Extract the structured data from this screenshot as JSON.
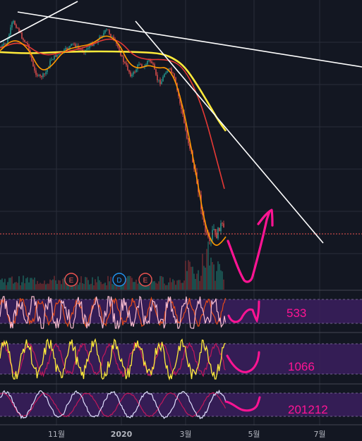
{
  "colors": {
    "background": "#131722",
    "grid": "#2a2e39",
    "up_candle": "#26a69a",
    "down_candle": "#ef5350",
    "ma_orange": "#ff9800",
    "ma_red": "#e53935",
    "ma_yellow": "#ffeb3b",
    "trendline": "#ffffff",
    "annotation": "#ff1493",
    "indicator_band": "#3b1f5e",
    "stoch_k": "#f8bbd0",
    "stoch_d": "#e64a19",
    "stoch2_k": "#ffeb3b",
    "stoch2_d": "#c2185b",
    "stoch3_k": "#e0e0ff",
    "stoch3_d": "#c2185b"
  },
  "chart_data": {
    "type": "candlestick",
    "x_axis": {
      "ticks": [
        {
          "label": "11월",
          "bold": false
        },
        {
          "label": "2020",
          "bold": true
        },
        {
          "label": "3월",
          "bold": false
        },
        {
          "label": "5월",
          "bold": false
        },
        {
          "label": "7월",
          "bold": false
        }
      ]
    },
    "grid": true,
    "price_scale": "hidden",
    "price_path": [
      [
        0,
        68
      ],
      [
        10,
        60
      ],
      [
        18,
        30
      ],
      [
        25,
        40
      ],
      [
        32,
        55
      ],
      [
        40,
        65
      ],
      [
        48,
        100
      ],
      [
        56,
        110
      ],
      [
        64,
        105
      ],
      [
        72,
        85
      ],
      [
        80,
        78
      ],
      [
        88,
        75
      ],
      [
        96,
        68
      ],
      [
        104,
        62
      ],
      [
        112,
        70
      ],
      [
        120,
        72
      ],
      [
        128,
        64
      ],
      [
        136,
        60
      ],
      [
        144,
        50
      ],
      [
        152,
        42
      ],
      [
        160,
        55
      ],
      [
        168,
        68
      ],
      [
        174,
        85
      ],
      [
        180,
        96
      ],
      [
        186,
        108
      ],
      [
        192,
        100
      ],
      [
        198,
        88
      ],
      [
        204,
        98
      ],
      [
        210,
        84
      ],
      [
        216,
        90
      ],
      [
        222,
        112
      ],
      [
        228,
        118
      ],
      [
        234,
        102
      ],
      [
        240,
        98
      ],
      [
        246,
        108
      ],
      [
        252,
        132
      ],
      [
        258,
        160
      ],
      [
        264,
        190
      ],
      [
        270,
        212
      ],
      [
        276,
        245
      ],
      [
        282,
        272
      ],
      [
        286,
        300
      ],
      [
        290,
        325
      ],
      [
        294,
        338
      ],
      [
        298,
        350
      ],
      [
        302,
        322
      ],
      [
        306,
        338
      ],
      [
        310,
        325
      ],
      [
        314,
        318
      ],
      [
        318,
        330
      ]
    ],
    "ma_orange_path": [
      [
        0,
        72
      ],
      [
        20,
        54
      ],
      [
        40,
        68
      ],
      [
        56,
        100
      ],
      [
        70,
        98
      ],
      [
        90,
        72
      ],
      [
        110,
        66
      ],
      [
        130,
        63
      ],
      [
        150,
        48
      ],
      [
        168,
        60
      ],
      [
        182,
        90
      ],
      [
        196,
        98
      ],
      [
        210,
        92
      ],
      [
        224,
        97
      ],
      [
        236,
        95
      ],
      [
        248,
        112
      ],
      [
        260,
        155
      ],
      [
        272,
        215
      ],
      [
        282,
        270
      ],
      [
        290,
        315
      ],
      [
        298,
        340
      ],
      [
        306,
        350
      ],
      [
        314,
        344
      ],
      [
        320,
        336
      ]
    ],
    "ma_red_path": [
      [
        0,
        68
      ],
      [
        30,
        58
      ],
      [
        60,
        80
      ],
      [
        90,
        74
      ],
      [
        120,
        68
      ],
      [
        150,
        54
      ],
      [
        170,
        58
      ],
      [
        190,
        80
      ],
      [
        210,
        85
      ],
      [
        230,
        84
      ],
      [
        250,
        88
      ],
      [
        265,
        104
      ],
      [
        280,
        135
      ],
      [
        292,
        170
      ],
      [
        304,
        215
      ],
      [
        318,
        268
      ]
    ],
    "ma_yellow_path": [
      [
        0,
        74
      ],
      [
        40,
        76
      ],
      [
        80,
        74
      ],
      [
        120,
        73
      ],
      [
        160,
        73
      ],
      [
        200,
        74
      ],
      [
        230,
        76
      ],
      [
        248,
        84
      ],
      [
        262,
        95
      ],
      [
        278,
        118
      ],
      [
        296,
        148
      ],
      [
        310,
        172
      ],
      [
        320,
        186
      ]
    ],
    "trendlines": [
      {
        "from": [
          25,
          17
        ],
        "to": [
          513,
          95
        ]
      },
      {
        "from": [
          0,
          60
        ],
        "to": [
          110,
          2
        ]
      },
      {
        "from": [
          192,
          30
        ],
        "to": [
          458,
          345
        ]
      }
    ],
    "current_price_dashed_line": true,
    "events": [
      "E",
      "D",
      "E"
    ],
    "annotations": {
      "main_forecast": "check-mark scribble projecting a V-shaped rebound",
      "indicator_labels": [
        "533",
        "1066",
        "201212"
      ]
    },
    "indicators": [
      {
        "name": "533",
        "type": "stochastic",
        "band": [
          20,
          80
        ]
      },
      {
        "name": "1066",
        "type": "stochastic",
        "band": [
          20,
          80
        ]
      },
      {
        "name": "201212",
        "type": "stochastic",
        "band": [
          20,
          80
        ]
      }
    ]
  }
}
